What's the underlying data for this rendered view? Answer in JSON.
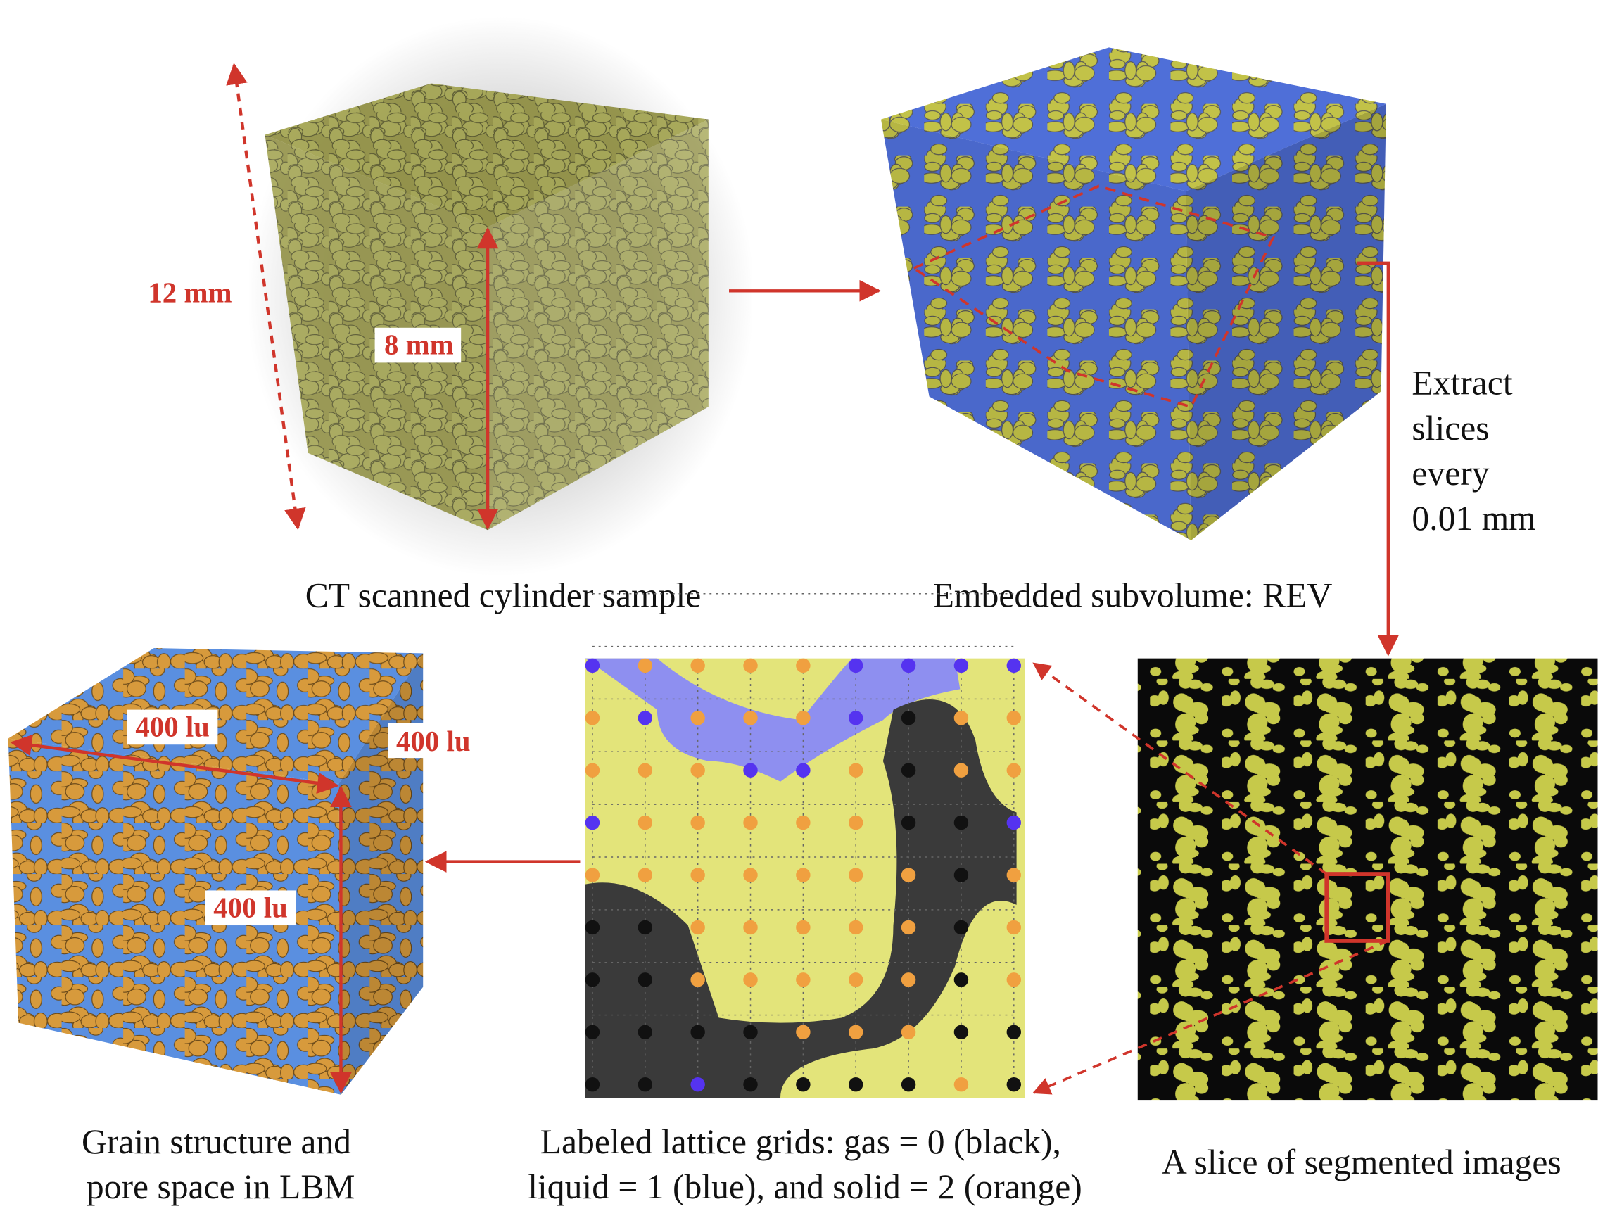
{
  "panels": {
    "ct": {
      "caption": "CT scanned cylinder sample",
      "outer": "12 mm",
      "inner": "8 mm"
    },
    "rev": {
      "caption": "Embedded subvolume: REV",
      "step": [
        "Extract",
        "slices",
        "every",
        "0.01 mm"
      ]
    },
    "slice": {
      "caption": "A slice of segmented images"
    },
    "lattice": {
      "caption": [
        "Labeled lattice grids: gas = 0 (black),",
        "liquid = 1 (blue), and solid = 2 (orange)"
      ]
    },
    "lbm": {
      "caption": [
        "Grain structure and",
        "pore space in LBM"
      ],
      "top": "400 lu",
      "side": "400 lu",
      "height": "400 lu"
    }
  }
}
